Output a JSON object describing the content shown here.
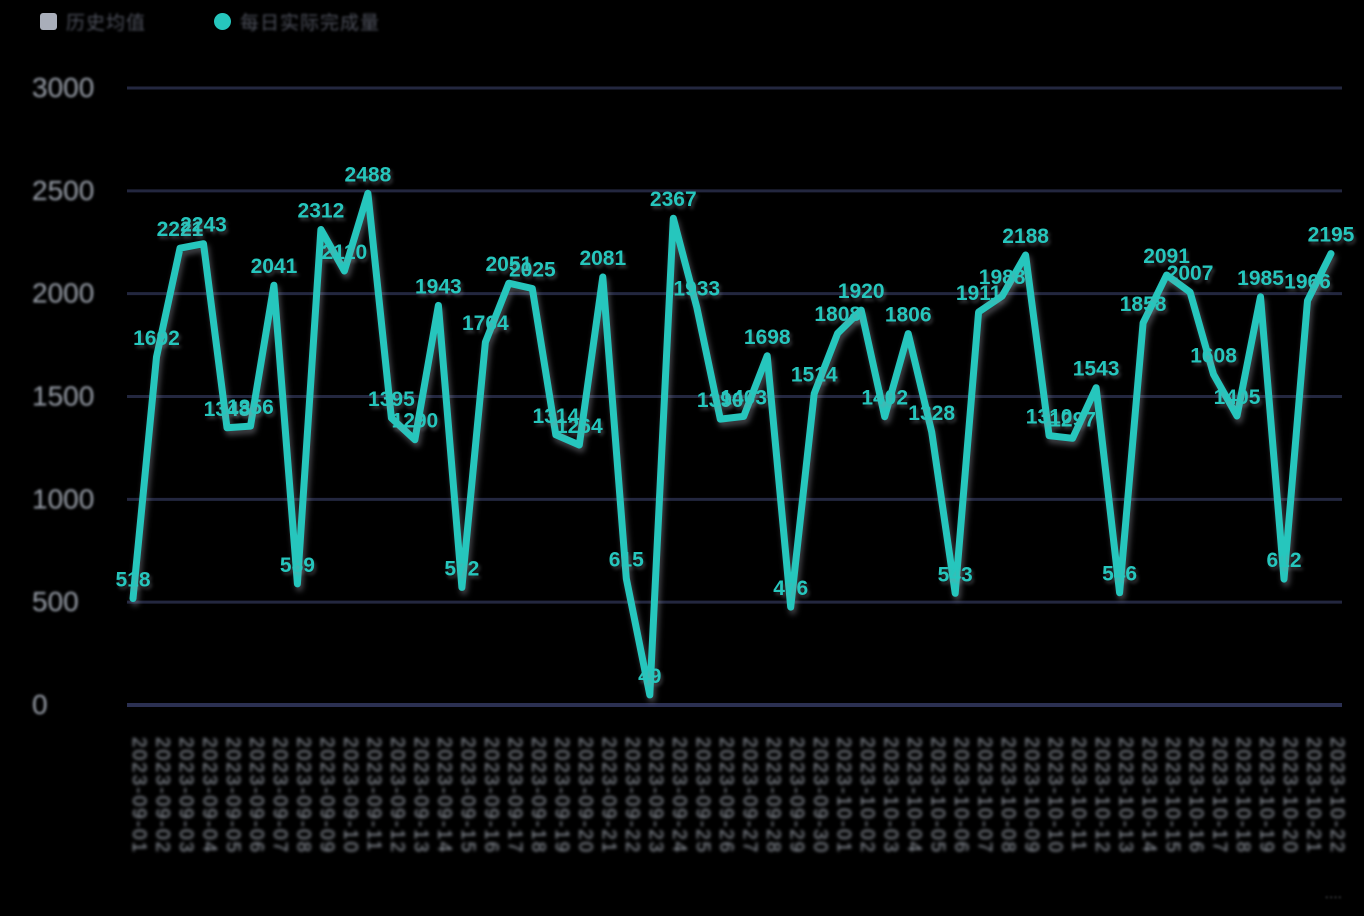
{
  "legend": {
    "items": [
      {
        "label": "历史均值",
        "marker": "square",
        "color": "#A9AEBA"
      },
      {
        "label": "每日实际完成量",
        "marker": "circle",
        "color": "#26C6BD"
      }
    ]
  },
  "y_axis": {
    "tick_labels": [
      "3000",
      "2500",
      "2000",
      "1500",
      "1000",
      "500",
      "0"
    ]
  },
  "chart_data": {
    "type": "line",
    "title": "",
    "xlabel": "",
    "ylabel": "",
    "ylim": [
      0,
      3000
    ],
    "yticks": [
      0,
      500,
      1000,
      1500,
      2000,
      2500,
      3000
    ],
    "grid": true,
    "legend_position": "top-left",
    "x": [
      "2023-09-01",
      "2023-09-02",
      "2023-09-03",
      "2023-09-04",
      "2023-09-05",
      "2023-09-06",
      "2023-09-07",
      "2023-09-08",
      "2023-09-09",
      "2023-09-10",
      "2023-09-11",
      "2023-09-12",
      "2023-09-13",
      "2023-09-14",
      "2023-09-15",
      "2023-09-16",
      "2023-09-17",
      "2023-09-18",
      "2023-09-19",
      "2023-09-20",
      "2023-09-21",
      "2023-09-22",
      "2023-09-23",
      "2023-09-24",
      "2023-09-25",
      "2023-09-26",
      "2023-09-27",
      "2023-09-28",
      "2023-09-29",
      "2023-09-30",
      "2023-10-01",
      "2023-10-02",
      "2023-10-03",
      "2023-10-04",
      "2023-10-05",
      "2023-10-06",
      "2023-10-07",
      "2023-10-08",
      "2023-10-09",
      "2023-10-10",
      "2023-10-11",
      "2023-10-12",
      "2023-10-13",
      "2023-10-14",
      "2023-10-15",
      "2023-10-16",
      "2023-10-17",
      "2023-10-18",
      "2023-10-19",
      "2023-10-20",
      "2023-10-21",
      "2023-10-22"
    ],
    "series": [
      {
        "name": "每日实际完成量",
        "color": "#26C6BD",
        "labels_visible": true,
        "values": [
          518,
          1692,
          2221,
          2243,
          1348,
          1356,
          2041,
          589,
          2312,
          2110,
          2488,
          1395,
          1290,
          1943,
          572,
          1764,
          2051,
          2025,
          1314,
          1264,
          2081,
          615,
          49,
          2367,
          1933,
          1390,
          1403,
          1698,
          476,
          1514,
          1808,
          1920,
          1402,
          1806,
          1328,
          543,
          1911,
          1988,
          2188,
          1310,
          1297,
          1543,
          546,
          1858,
          2091,
          2007,
          1608,
          1405,
          1985,
          612,
          1966,
          2195
        ]
      }
    ]
  },
  "watermark": "····"
}
